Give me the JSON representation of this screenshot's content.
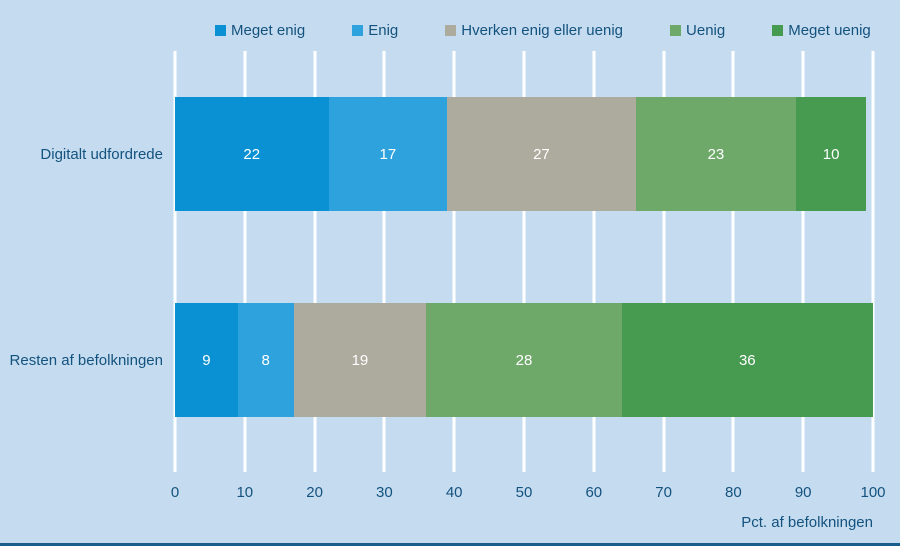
{
  "colors": {
    "background": "#c5dcf0",
    "text": "#14527e",
    "gridline": "#ffffff",
    "bar_label": "#ffffff",
    "bottom_border": "#1a5c8c"
  },
  "chart_data": {
    "type": "bar",
    "orientation": "horizontal",
    "stacked": true,
    "categories": [
      "Digitalt udfordrede",
      "Resten af befolkningen"
    ],
    "series": [
      {
        "name": "Meget enig",
        "color": "#0991d4",
        "values": [
          22,
          9
        ]
      },
      {
        "name": "Enig",
        "color": "#2ea2dc",
        "values": [
          17,
          8
        ]
      },
      {
        "name": "Hverken enig eller uenig",
        "color": "#adab9e",
        "values": [
          27,
          19
        ]
      },
      {
        "name": "Uenig",
        "color": "#6fa96a",
        "values": [
          23,
          28
        ]
      },
      {
        "name": "Meget uenig",
        "color": "#479b50",
        "values": [
          10,
          36
        ]
      }
    ],
    "xlim": [
      0,
      100
    ],
    "x_ticks": [
      0,
      10,
      20,
      30,
      40,
      50,
      60,
      70,
      80,
      90,
      100
    ],
    "xlabel": "Pct. af befolkningen",
    "legend_position": "top",
    "grid": "vertical"
  }
}
